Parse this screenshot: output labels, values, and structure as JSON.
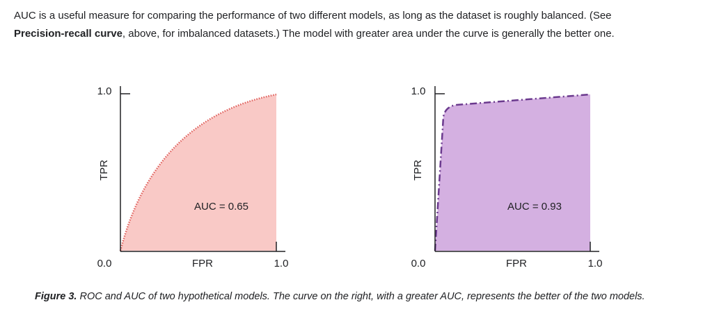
{
  "paragraph": {
    "line_1": "AUC is a useful measure for comparing the performance of two different models, as long as the dataset is roughly balanced. (See",
    "bold": "Precision-recall curve",
    "line_2": ", above, for imbalanced datasets.) The model with greater area under the curve is generally the better one."
  },
  "figures": [
    {
      "y_top": "1.0",
      "y_axis": "TPR",
      "y_bottom": "0.0",
      "x_axis": "FPR",
      "x_right": "1.0",
      "annotation": "AUC = 0.65"
    },
    {
      "y_top": "1.0",
      "y_axis": "TPR",
      "y_bottom": "0.0",
      "x_axis": "FPR",
      "x_right": "1.0",
      "annotation": "AUC = 0.93"
    }
  ],
  "caption": {
    "label": "Figure 3.",
    "text": "ROC and AUC of two hypothetical models. The curve on the right, with a greater AUC, represents the better of the two models."
  }
}
